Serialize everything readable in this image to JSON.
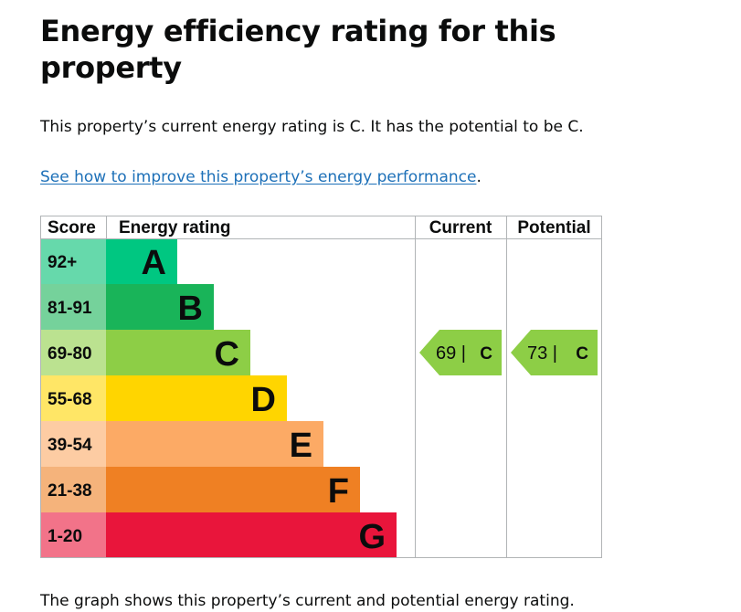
{
  "page": {
    "title": "Energy efficiency rating for this property",
    "summary": "This property’s current energy rating is C. It has the potential to be C.",
    "improve_link": "See how to improve this property’s energy performance",
    "improve_suffix": ".",
    "footer_text": "The graph shows this property’s current and potential energy rating."
  },
  "chart_data": {
    "type": "table",
    "headers": {
      "score": "Score",
      "rating": "Energy rating",
      "current": "Current",
      "potential": "Potential"
    },
    "bands": [
      {
        "score": "92+",
        "letter": "A",
        "color": "#00c781",
        "score_bg": "#66d9ab"
      },
      {
        "score": "81-91",
        "letter": "B",
        "color": "#19b459",
        "score_bg": "#75d29b"
      },
      {
        "score": "69-80",
        "letter": "C",
        "color": "#8dce46",
        "score_bg": "#bbe290"
      },
      {
        "score": "55-68",
        "letter": "D",
        "color": "#ffd500",
        "score_bg": "#ffe666"
      },
      {
        "score": "39-54",
        "letter": "E",
        "color": "#fcaa65",
        "score_bg": "#fdcca3"
      },
      {
        "score": "21-38",
        "letter": "F",
        "color": "#ef8023",
        "score_bg": "#f5b37b"
      },
      {
        "score": "1-20",
        "letter": "G",
        "color": "#e9153b",
        "score_bg": "#f27389"
      }
    ],
    "current": {
      "score": 69,
      "letter": "C",
      "label": "69 |",
      "color": "#8dce46"
    },
    "potential": {
      "score": 73,
      "letter": "C",
      "label": "73 |",
      "color": "#8dce46"
    }
  }
}
